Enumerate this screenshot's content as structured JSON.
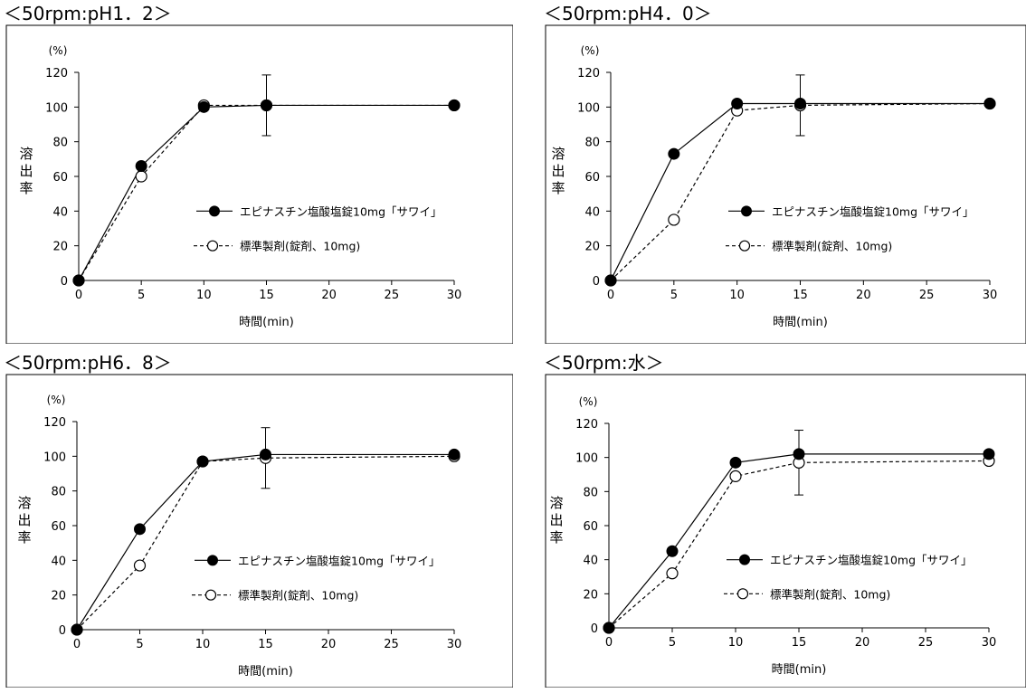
{
  "legend_labels": {
    "test": "エピナスチン塩酸塩錠10mg「サワイ」",
    "reference": "標準製剤(錠剤、10mg)"
  },
  "chart_data": [
    {
      "type": "line",
      "title": "＜50rpm:pH1．2＞",
      "xlabel": "時間(min)",
      "ylabel": "溶出率",
      "yunit": "(%)",
      "xlim": [
        0,
        30
      ],
      "ylim": [
        0,
        120
      ],
      "xticks": [
        0,
        5,
        10,
        15,
        20,
        25,
        30
      ],
      "yticks": [
        0,
        20,
        40,
        60,
        80,
        100,
        120
      ],
      "grid": false,
      "legend_position": "right-middle",
      "series": [
        {
          "name": "エピナスチン塩酸塩錠10mg「サワイ」",
          "marker": "filled-circle",
          "line": "solid",
          "x": [
            0,
            5,
            10,
            15,
            30
          ],
          "y": [
            0,
            66,
            100,
            101,
            101
          ]
        },
        {
          "name": "標準製剤(錠剤、10mg)",
          "marker": "open-circle",
          "line": "dashed",
          "x": [
            0,
            5,
            10,
            15,
            30
          ],
          "y": [
            0,
            60,
            101,
            101,
            101
          ],
          "error": [
            0,
            0,
            0,
            17.5,
            0
          ]
        }
      ]
    },
    {
      "type": "line",
      "title": "＜50rpm:pH4．0＞",
      "xlabel": "時間(min)",
      "ylabel": "溶出率",
      "yunit": "(%)",
      "xlim": [
        0,
        30
      ],
      "ylim": [
        0,
        120
      ],
      "xticks": [
        0,
        5,
        10,
        15,
        20,
        25,
        30
      ],
      "yticks": [
        0,
        20,
        40,
        60,
        80,
        100,
        120
      ],
      "grid": false,
      "legend_position": "right-middle",
      "series": [
        {
          "name": "エピナスチン塩酸塩錠10mg「サワイ」",
          "marker": "filled-circle",
          "line": "solid",
          "x": [
            0,
            5,
            10,
            15,
            30
          ],
          "y": [
            0,
            73,
            102,
            102,
            102
          ]
        },
        {
          "name": "標準製剤(錠剤、10mg)",
          "marker": "open-circle",
          "line": "dashed",
          "x": [
            0,
            5,
            10,
            15,
            30
          ],
          "y": [
            0,
            35,
            98,
            101,
            102
          ],
          "error": [
            0,
            0,
            0,
            17.5,
            0
          ]
        }
      ]
    },
    {
      "type": "line",
      "title": "＜50rpm:pH6．8＞",
      "xlabel": "時間(min)",
      "ylabel": "溶出率",
      "yunit": "(%)",
      "xlim": [
        0,
        30
      ],
      "ylim": [
        0,
        120
      ],
      "xticks": [
        0,
        5,
        10,
        15,
        20,
        25,
        30
      ],
      "yticks": [
        0,
        20,
        40,
        60,
        80,
        100,
        120
      ],
      "grid": false,
      "legend_position": "right-middle",
      "series": [
        {
          "name": "エピナスチン塩酸塩錠10mg「サワイ」",
          "marker": "filled-circle",
          "line": "solid",
          "x": [
            0,
            5,
            10,
            15,
            30
          ],
          "y": [
            0,
            58,
            97,
            101,
            101
          ]
        },
        {
          "name": "標準製剤(錠剤、10mg)",
          "marker": "open-circle",
          "line": "dashed",
          "x": [
            0,
            5,
            10,
            15,
            30
          ],
          "y": [
            0,
            37,
            97,
            99,
            100
          ],
          "error": [
            0,
            0,
            0,
            17.5,
            0
          ]
        }
      ]
    },
    {
      "type": "line",
      "title": "＜50rpm:水＞",
      "xlabel": "時間(min)",
      "ylabel": "溶出率",
      "yunit": "(%)",
      "xlim": [
        0,
        30
      ],
      "ylim": [
        0,
        120
      ],
      "xticks": [
        0,
        5,
        10,
        15,
        20,
        25,
        30
      ],
      "yticks": [
        0,
        20,
        40,
        60,
        80,
        100,
        120
      ],
      "grid": false,
      "legend_position": "right-middle",
      "series": [
        {
          "name": "エピナスチン塩酸塩錠10mg「サワイ」",
          "marker": "filled-circle",
          "line": "solid",
          "x": [
            0,
            5,
            10,
            15,
            30
          ],
          "y": [
            0,
            45,
            97,
            102,
            102
          ]
        },
        {
          "name": "標準製剤(錠剤、10mg)",
          "marker": "open-circle",
          "line": "dashed",
          "x": [
            0,
            5,
            10,
            15,
            30
          ],
          "y": [
            0,
            32,
            89,
            97,
            98
          ],
          "error": [
            0,
            0,
            0,
            19,
            0
          ]
        }
      ]
    }
  ]
}
